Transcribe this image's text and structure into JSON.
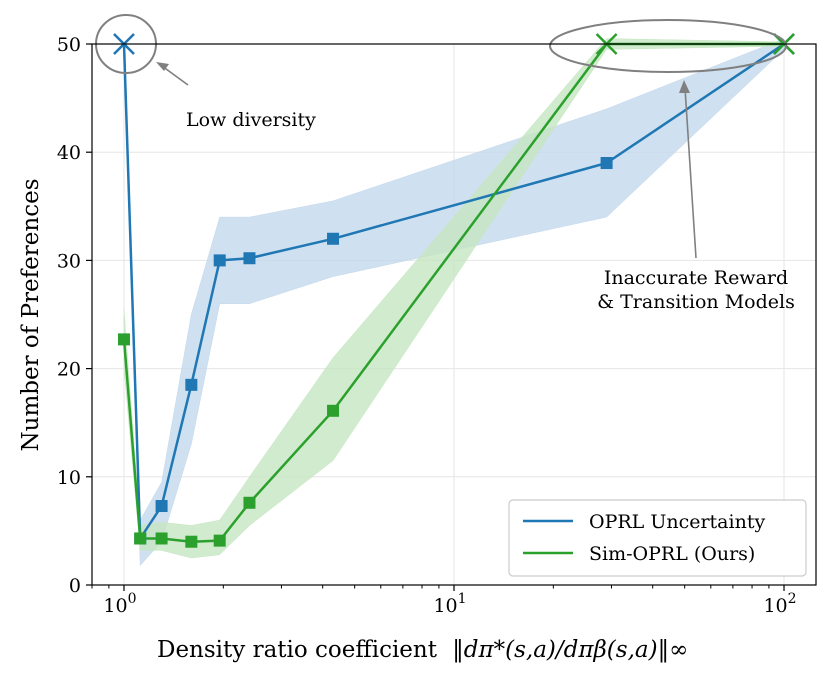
{
  "chart_data": {
    "type": "line",
    "xscale": "log",
    "xlim": [
      0.8,
      125
    ],
    "ylim": [
      0,
      50
    ],
    "xlabel": "Density ratio coefficient",
    "xlabel_math": "‖dπ*(s,a)/dπβ(s,a)‖∞",
    "ylabel": "Number of Preferences",
    "x_ticks": [
      {
        "value": 1,
        "base": "10",
        "exp": "0"
      },
      {
        "value": 10,
        "base": "10",
        "exp": "1"
      },
      {
        "value": 100,
        "base": "10",
        "exp": "2"
      }
    ],
    "y_ticks": [
      0,
      10,
      20,
      30,
      40,
      50
    ],
    "grid": true,
    "legend_position": "lower-right",
    "series": [
      {
        "name": "OPRL Uncertainty",
        "color": "#1f77b4",
        "band_color": "#c3d8ec",
        "x": [
          1.0,
          1.12,
          1.3,
          1.6,
          1.95,
          2.4,
          4.3,
          29,
          100
        ],
        "y": [
          50,
          4.3,
          7.3,
          18.5,
          30.0,
          30.2,
          32.0,
          39.0,
          50
        ],
        "lower": [
          50,
          1.8,
          4.0,
          13.0,
          26.0,
          26.0,
          28.5,
          34.0,
          49.5
        ],
        "upper": [
          50,
          6.0,
          9.5,
          25.0,
          34.0,
          34.0,
          35.5,
          44.0,
          50.5
        ],
        "cross_markers": [
          0,
          8
        ]
      },
      {
        "name": "Sim-OPRL (Ours)",
        "color": "#2ca02c",
        "band_color": "#c6e6c2",
        "x": [
          1.0,
          1.12,
          1.3,
          1.6,
          1.95,
          2.4,
          4.3,
          29,
          100
        ],
        "y": [
          22.7,
          4.3,
          4.3,
          4.0,
          4.1,
          7.6,
          16.1,
          50,
          50
        ],
        "lower": [
          20.0,
          3.2,
          3.2,
          2.5,
          2.8,
          5.5,
          11.5,
          49.5,
          49.8
        ],
        "upper": [
          25.5,
          5.5,
          5.8,
          5.5,
          6.0,
          10.0,
          21.0,
          50.5,
          50.2
        ],
        "cross_markers": [
          7,
          8
        ]
      }
    ],
    "annotations": [
      {
        "text": "Low diversity",
        "x": 1.0,
        "y": 50
      },
      {
        "text_line1": "Inaccurate Reward",
        "text_line2": "& Transition Models",
        "x": 50,
        "y": 50
      }
    ]
  }
}
